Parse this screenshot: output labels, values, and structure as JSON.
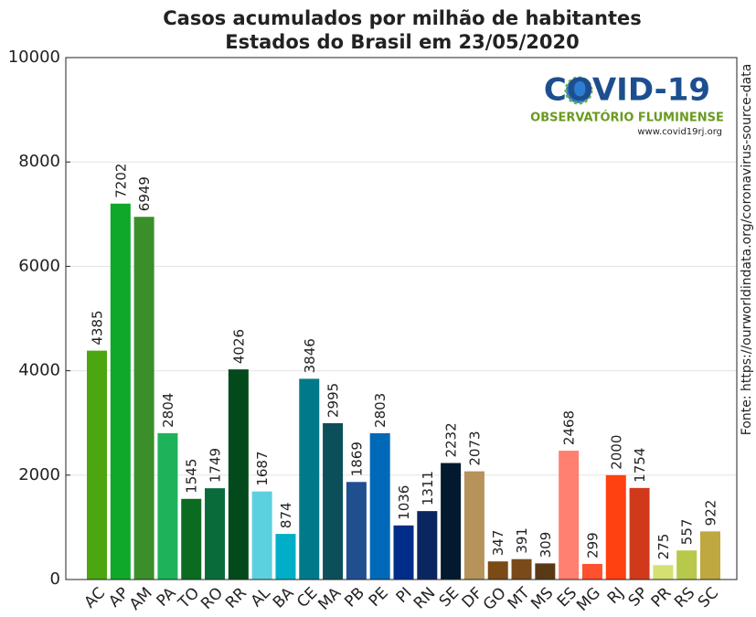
{
  "chart_data": {
    "type": "bar",
    "title": "Casos acumulados por milhão de habitantes",
    "subtitle": "Estados do Brasil em 23/05/2020",
    "source": "Fonte: https://ourworldindata.org/coronavirus-source-data",
    "logo": {
      "title": "COVID-19",
      "subtitle": "OBSERVATÓRIO FLUMINENSE",
      "url": "www.covid19rj.org"
    },
    "categories": [
      "AC",
      "AP",
      "AM",
      "PA",
      "TO",
      "RO",
      "RR",
      "AL",
      "BA",
      "CE",
      "MA",
      "PB",
      "PE",
      "PI",
      "RN",
      "SE",
      "DF",
      "GO",
      "MT",
      "MS",
      "ES",
      "MG",
      "RJ",
      "SP",
      "PR",
      "RS",
      "SC"
    ],
    "values": [
      4385,
      7202,
      6949,
      2804,
      1545,
      1749,
      4026,
      1687,
      874,
      3846,
      2995,
      1869,
      2803,
      1036,
      1311,
      2232,
      2073,
      347,
      391,
      309,
      2468,
      299,
      2000,
      1754,
      275,
      557,
      922
    ],
    "colors": [
      "#4ca60f",
      "#0fa82a",
      "#3a8f2a",
      "#1db35a",
      "#0b6b21",
      "#0a6b3a",
      "#024a1c",
      "#5dd0e0",
      "#00aec7",
      "#007a8a",
      "#0c4f5a",
      "#1f4f8f",
      "#0069b8",
      "#002d8a",
      "#0a2660",
      "#031a2e",
      "#b5935a",
      "#7b4a15",
      "#7a4a1a",
      "#5a3a15",
      "#ff8070",
      "#ff5030",
      "#ff4010",
      "#d03a1a",
      "#d4e070",
      "#b8c84a",
      "#c0a840"
    ],
    "ylim": [
      0,
      10000
    ],
    "yticks": [
      0,
      2000,
      4000,
      6000,
      8000,
      10000
    ],
    "grid": true
  }
}
